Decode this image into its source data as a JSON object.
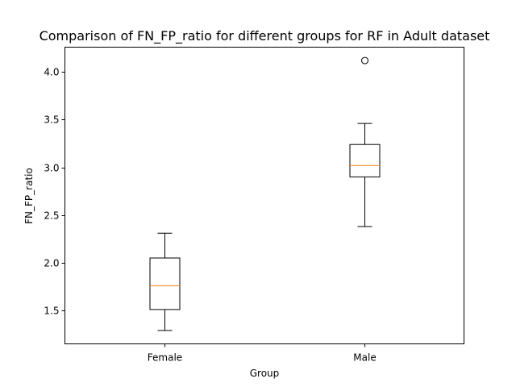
{
  "chart_data": {
    "type": "box",
    "title": "Comparison of FN_FP_ratio for different groups for RF in Adult dataset",
    "xlabel": "Group",
    "ylabel": "FN_FP_ratio",
    "categories": [
      "Female",
      "Male"
    ],
    "ylim": [
      1.15,
      4.26
    ],
    "yticks": [
      1.5,
      2.0,
      2.5,
      3.0,
      3.5,
      4.0
    ],
    "ytick_labels": [
      "1.5",
      "2.0",
      "2.5",
      "3.0",
      "3.5",
      "4.0"
    ],
    "grid": false,
    "boxes": [
      {
        "name": "Female",
        "whisker_low": 1.29,
        "q1": 1.51,
        "median": 1.76,
        "q3": 2.05,
        "whisker_high": 2.31,
        "outliers": []
      },
      {
        "name": "Male",
        "whisker_low": 2.38,
        "q1": 2.9,
        "median": 3.02,
        "q3": 3.24,
        "whisker_high": 3.46,
        "outliers": [
          4.12
        ]
      }
    ],
    "colors": {
      "box": "#000000",
      "median": "#ff7f0e",
      "axes": "#000000"
    }
  }
}
